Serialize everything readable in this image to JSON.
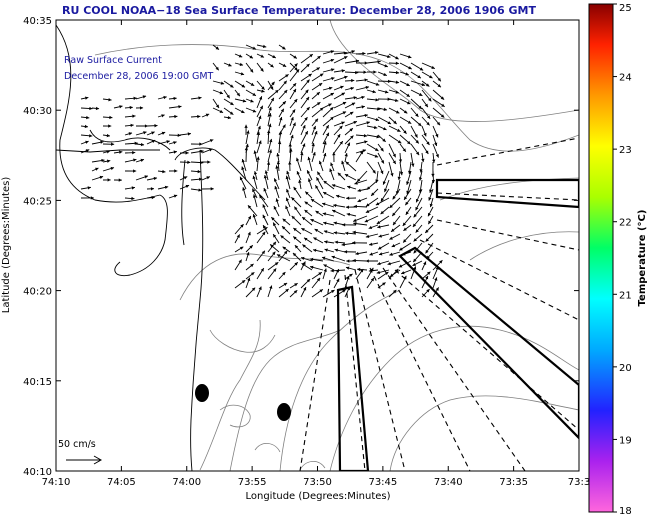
{
  "title": "RU COOL  NOAA−18  Sea Surface Temperature:  December 28, 2006 1906 GMT",
  "legend": {
    "line1": "Raw Surface Current",
    "line2": "December 28, 2006 19:00 GMT"
  },
  "scale_arrow": {
    "label": "50 cm/s"
  },
  "axes": {
    "xlabel": "Longitude (Degrees:Minutes)",
    "ylabel": "Latitude (Degrees:Minutes)",
    "x_ticks": [
      "74:10",
      "74:05",
      "74:00",
      "73:55",
      "73:50",
      "73:45",
      "73:40",
      "73:35",
      "73:3"
    ],
    "y_ticks": [
      "40:35",
      "40:30",
      "40:25",
      "40:20",
      "40:15",
      "40:10"
    ]
  },
  "colorbar": {
    "title": "Temperature (°C)",
    "ticks": [
      "25",
      "24",
      "23",
      "22",
      "21",
      "20",
      "19",
      "18"
    ],
    "range": [
      18,
      25
    ],
    "colors": [
      "#ff66dd",
      "#aa22ee",
      "#2222ff",
      "#00aaff",
      "#00ffff",
      "#00ff66",
      "#aaff00",
      "#ffff00",
      "#ff9900",
      "#ff2200",
      "#880000"
    ]
  },
  "colors": {
    "title": "#1a1aa0",
    "land_line": "#000000",
    "bathymetry": "#777777",
    "vectors": "#000000"
  },
  "icons": {
    "scale_arrow": "right-arrow",
    "current_vectors": "arrow-field",
    "dots": "filled-ellipse"
  }
}
